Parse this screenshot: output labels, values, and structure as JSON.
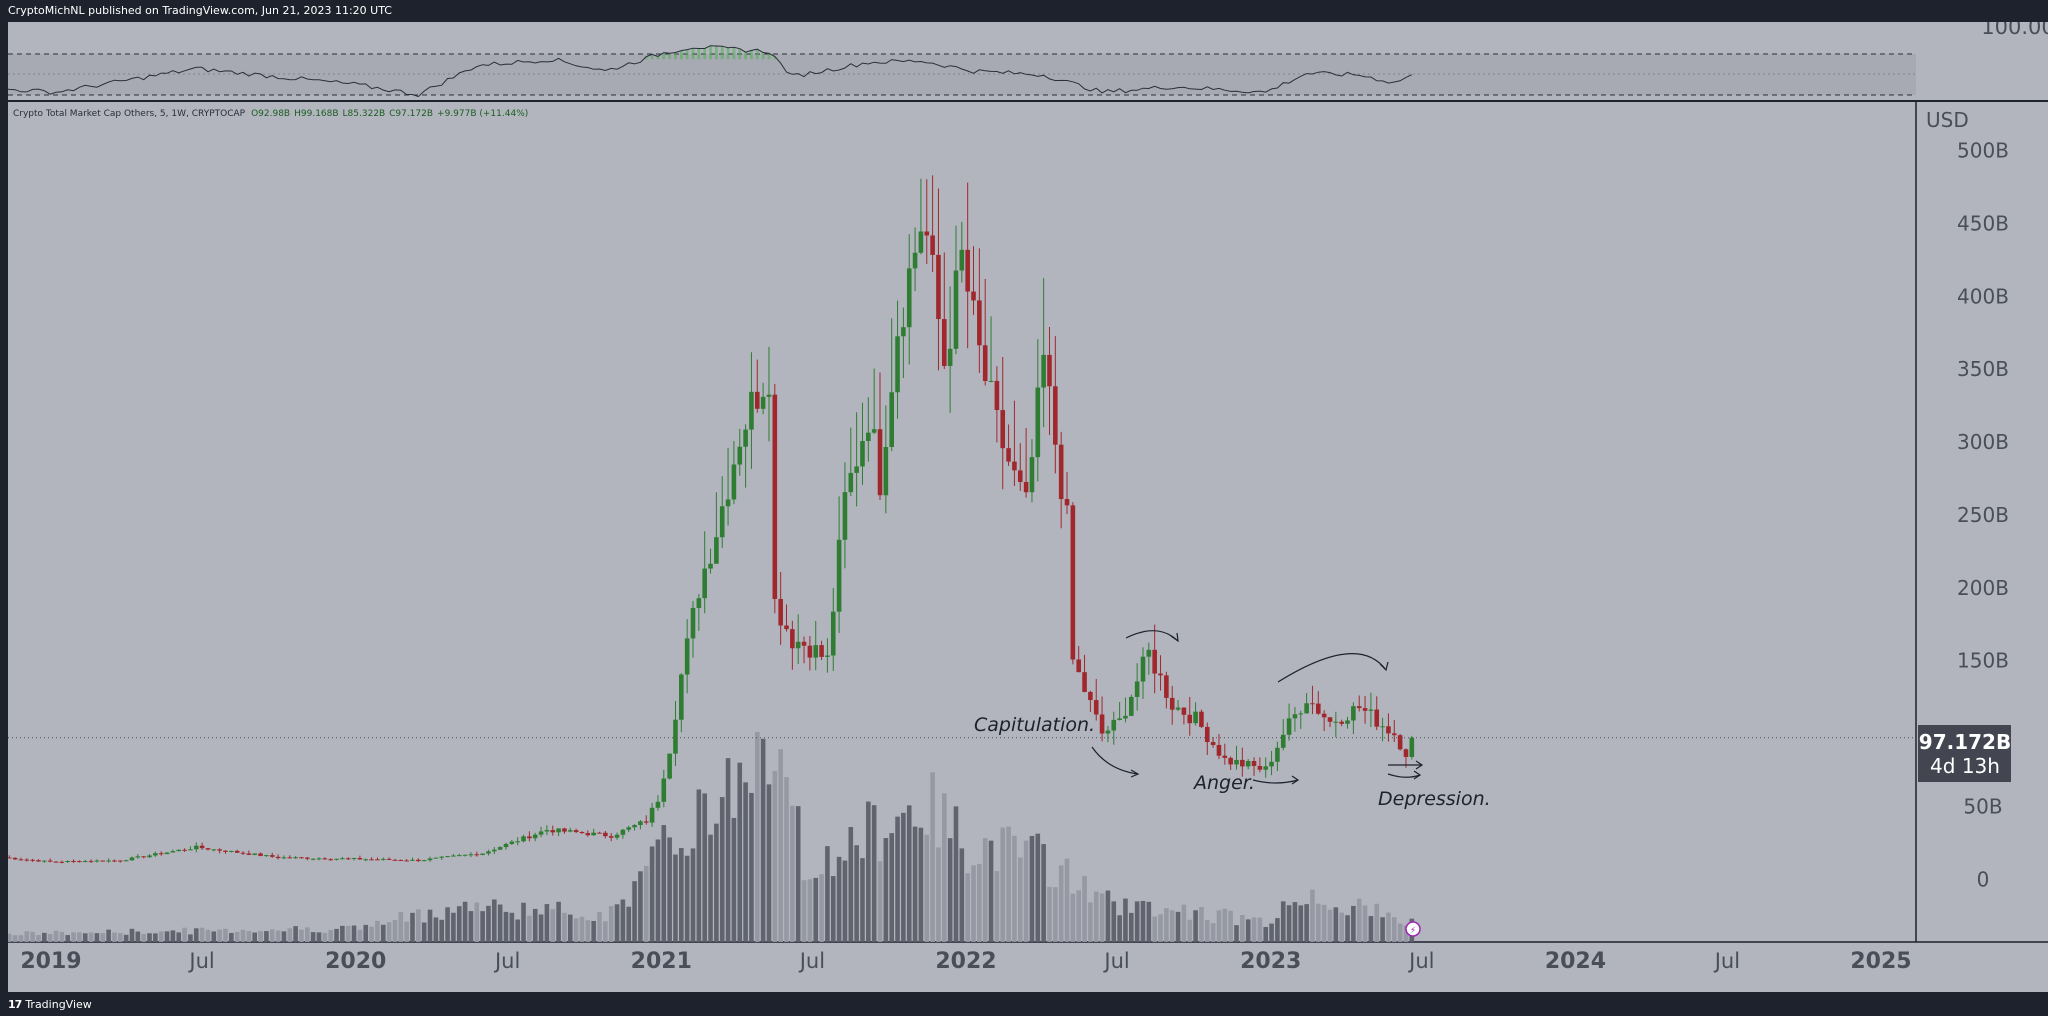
{
  "header": {
    "published_line": "CryptoMichNL published on TradingView.com, Jun 21, 2023 11:20 UTC"
  },
  "legend": {
    "symbol": "Crypto Total Market Cap Others, 5, 1W, CRYPTOCAP",
    "open": "O92.98B",
    "high": "H99.168B",
    "low": "L85.322B",
    "close": "C97.172B",
    "change": "+9.977B (+11.44%)"
  },
  "footer": {
    "brand": "TradingView"
  },
  "price_tag": {
    "value": "97.172B",
    "countdown": "4d 13h"
  },
  "annotations": [
    "Capitulation.",
    "Anger.",
    "Depression."
  ],
  "colors": {
    "up": "#2e7d32",
    "down": "#a0282d",
    "background": "#b2b5be",
    "frame": "#1e222d"
  },
  "chart_data": {
    "type": "candlestick",
    "ylabel": "USD",
    "y_ticks": [
      "500B",
      "450B",
      "400B",
      "350B",
      "300B",
      "250B",
      "200B",
      "150B",
      "50B",
      "0"
    ],
    "y_tick_values": [
      500,
      450,
      400,
      350,
      300,
      250,
      200,
      150,
      50,
      0
    ],
    "ylim": [
      -43,
      534
    ],
    "x_ticks": [
      "2019",
      "Jul",
      "2020",
      "Jul",
      "2021",
      "Jul",
      "2022",
      "Jul",
      "2023",
      "Jul",
      "2024",
      "Jul",
      "2025"
    ],
    "x_tick_dates": [
      "2019-01-01",
      "2019-07-01",
      "2020-01-01",
      "2020-07-01",
      "2021-01-01",
      "2021-07-01",
      "2022-01-01",
      "2022-07-01",
      "2023-01-01",
      "2023-07-01",
      "2024-01-01",
      "2024-07-01",
      "2025-01-01"
    ],
    "last_close": 97.172,
    "anchors": [
      [
        "2018-11-05",
        15
      ],
      [
        "2018-12-31",
        12
      ],
      [
        "2019-03-25",
        13
      ],
      [
        "2019-06-24",
        22
      ],
      [
        "2019-09-30",
        15
      ],
      [
        "2019-12-30",
        14
      ],
      [
        "2020-03-16",
        13
      ],
      [
        "2020-06-01",
        18
      ],
      [
        "2020-08-17",
        34
      ],
      [
        "2020-11-02",
        30
      ],
      [
        "2020-12-14",
        40
      ],
      [
        "2020-12-28",
        55
      ],
      [
        "2021-01-11",
        90
      ],
      [
        "2021-01-25",
        140
      ],
      [
        "2021-02-15",
        200
      ],
      [
        "2021-03-08",
        240
      ],
      [
        "2021-04-05",
        305
      ],
      [
        "2021-04-26",
        335
      ],
      [
        "2021-05-10",
        350
      ],
      [
        "2021-05-17",
        190
      ],
      [
        "2021-06-07",
        165
      ],
      [
        "2021-06-28",
        160
      ],
      [
        "2021-07-19",
        150
      ],
      [
        "2021-08-09",
        260
      ],
      [
        "2021-09-06",
        320
      ],
      [
        "2021-09-20",
        275
      ],
      [
        "2021-10-11",
        380
      ],
      [
        "2021-11-08",
        450
      ],
      [
        "2021-11-15",
        440
      ],
      [
        "2021-12-06",
        355
      ],
      [
        "2021-12-27",
        425
      ],
      [
        "2022-01-17",
        360
      ],
      [
        "2022-02-07",
        310
      ],
      [
        "2022-02-28",
        275
      ],
      [
        "2022-03-14",
        255
      ],
      [
        "2022-04-04",
        355
      ],
      [
        "2022-04-18",
        300
      ],
      [
        "2022-05-02",
        245
      ],
      [
        "2022-05-09",
        150
      ],
      [
        "2022-05-30",
        120
      ],
      [
        "2022-06-13",
        100
      ],
      [
        "2022-07-04",
        108
      ],
      [
        "2022-08-08",
        155
      ],
      [
        "2022-09-05",
        120
      ],
      [
        "2022-10-03",
        110
      ],
      [
        "2022-11-07",
        82
      ],
      [
        "2022-12-05",
        78
      ],
      [
        "2022-12-26",
        75
      ],
      [
        "2023-01-16",
        100
      ],
      [
        "2023-02-13",
        125
      ],
      [
        "2023-03-13",
        108
      ],
      [
        "2023-04-17",
        118
      ],
      [
        "2023-05-29",
        100
      ],
      [
        "2023-06-12",
        87.2
      ],
      [
        "2023-06-19",
        97.172
      ]
    ],
    "volume_profile": [
      [
        "2018-11-05",
        0.04
      ],
      [
        "2020-01-06",
        0.07
      ],
      [
        "2020-05-04",
        0.18
      ],
      [
        "2020-11-02",
        0.14
      ],
      [
        "2021-01-04",
        0.45
      ],
      [
        "2021-02-01",
        0.58
      ],
      [
        "2021-05-10",
        1.0
      ],
      [
        "2021-06-28",
        0.35
      ],
      [
        "2021-09-06",
        0.55
      ],
      [
        "2021-11-08",
        0.7
      ],
      [
        "2022-01-03",
        0.5
      ],
      [
        "2022-04-04",
        0.42
      ],
      [
        "2022-06-13",
        0.2
      ],
      [
        "2022-10-03",
        0.15
      ],
      [
        "2022-12-26",
        0.1
      ],
      [
        "2023-02-13",
        0.24
      ],
      [
        "2023-06-19",
        0.1
      ]
    ],
    "rsi": {
      "upper_band": 70,
      "lower_band": 30,
      "y_tick": "100.00",
      "profile": [
        [
          "2018-11-05",
          32
        ],
        [
          "2019-01-07",
          28
        ],
        [
          "2019-06-24",
          58
        ],
        [
          "2019-12-30",
          38
        ],
        [
          "2020-03-16",
          25
        ],
        [
          "2020-05-25",
          62
        ],
        [
          "2020-08-24",
          70
        ],
        [
          "2020-10-26",
          55
        ],
        [
          "2021-01-04",
          78
        ],
        [
          "2021-02-08",
          86
        ],
        [
          "2021-05-10",
          80
        ],
        [
          "2021-06-07",
          48
        ],
        [
          "2021-09-06",
          66
        ],
        [
          "2021-11-08",
          68
        ],
        [
          "2022-01-10",
          55
        ],
        [
          "2022-04-04",
          50
        ],
        [
          "2022-06-13",
          28
        ],
        [
          "2022-09-05",
          35
        ],
        [
          "2022-12-26",
          28
        ],
        [
          "2023-02-13",
          52
        ],
        [
          "2023-04-17",
          50
        ],
        [
          "2023-05-29",
          40
        ],
        [
          "2023-06-19",
          50
        ]
      ]
    }
  }
}
